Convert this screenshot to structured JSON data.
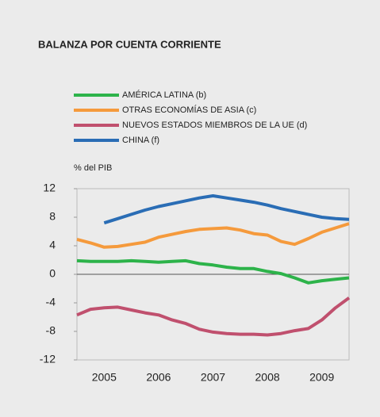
{
  "chart_data": {
    "type": "line",
    "title": "BALANZA POR CUENTA CORRIENTE",
    "y_label": "% del PIB",
    "categories": [
      null,
      null,
      "2005",
      null,
      null,
      null,
      "2006",
      null,
      null,
      null,
      "2007",
      null,
      null,
      null,
      "2008",
      null,
      null,
      null,
      "2009",
      null,
      null
    ],
    "series": [
      {
        "name": "AMÉRICA LATINA (b)",
        "color": "#2db34a",
        "values": [
          1.9,
          1.8,
          1.8,
          1.8,
          1.9,
          1.8,
          1.7,
          1.8,
          1.9,
          1.5,
          1.3,
          1.0,
          0.8,
          0.8,
          0.4,
          0.1,
          -0.5,
          -1.2,
          -0.9,
          -0.7,
          -0.5
        ]
      },
      {
        "name": "OTRAS ECONOMÍAS DE ASIA (c)",
        "color": "#f59a3c",
        "values": [
          4.9,
          4.4,
          3.8,
          3.9,
          4.2,
          4.5,
          5.2,
          5.6,
          6.0,
          6.3,
          6.4,
          6.5,
          6.2,
          5.7,
          5.5,
          4.6,
          4.2,
          5.0,
          5.9,
          6.5,
          7.1
        ]
      },
      {
        "name": "NUEVOS ESTADOS MIEMBROS DE LA UE (d)",
        "color": "#c0506e",
        "values": [
          -5.7,
          -4.9,
          -4.7,
          -4.6,
          -5.0,
          -5.4,
          -5.7,
          -6.4,
          -6.9,
          -7.7,
          -8.1,
          -8.3,
          -8.4,
          -8.4,
          -8.5,
          -8.3,
          -7.9,
          -7.6,
          -6.4,
          -4.7,
          -3.3
        ]
      },
      {
        "name": "CHINA (f)",
        "color": "#2a6db5",
        "values": [
          null,
          null,
          7.2,
          7.8,
          8.4,
          9.0,
          9.5,
          9.9,
          10.3,
          10.7,
          11.0,
          10.7,
          10.4,
          10.1,
          9.7,
          9.2,
          8.8,
          8.4,
          8.0,
          7.8,
          7.7
        ]
      }
    ],
    "ylim": [
      -12,
      12
    ],
    "yticks": [
      -12,
      -8,
      -4,
      0,
      4,
      8,
      12
    ],
    "grid": false
  }
}
